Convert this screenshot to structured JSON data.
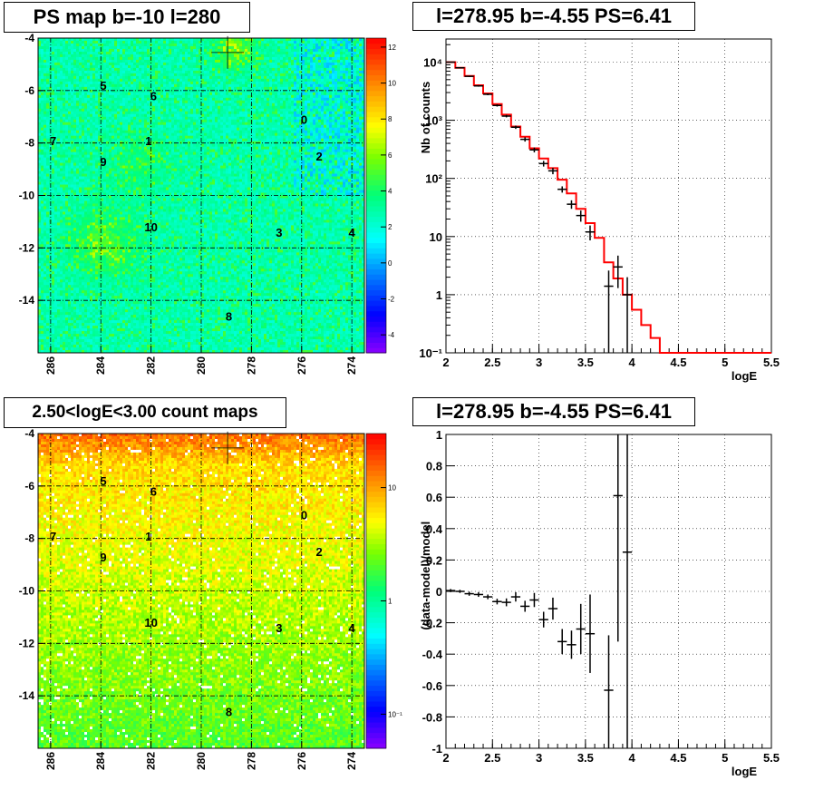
{
  "chart_data": [
    {
      "type": "heatmap",
      "title": "PS map b=-10 l=280",
      "x_ticks": [
        "286",
        "284",
        "282",
        "280",
        "278",
        "276",
        "274"
      ],
      "x_tick_values": [
        286,
        284,
        282,
        280,
        278,
        276,
        274
      ],
      "y_ticks": [
        "-4",
        "-6",
        "-8",
        "-10",
        "-12",
        "-14"
      ],
      "y_tick_values": [
        -4,
        -6,
        -8,
        -10,
        -12,
        -14
      ],
      "xlim": [
        286.5,
        273.5
      ],
      "ylim": [
        -16,
        -4
      ],
      "colorbar_ticks": [
        "12",
        "10",
        "8",
        "6",
        "4",
        "2",
        "0",
        "-2",
        "-4"
      ],
      "colorbar_values": [
        12,
        10,
        8,
        6,
        4,
        2,
        0,
        -2,
        -4
      ],
      "colorbar_range": [
        -5,
        12.5
      ],
      "marker": {
        "l": 278.95,
        "b": -4.55
      },
      "sources": [
        {
          "id": "0",
          "l": 275.9,
          "b": -7.1
        },
        {
          "id": "1",
          "l": 282.1,
          "b": -7.9
        },
        {
          "id": "2",
          "l": 275.3,
          "b": -8.5
        },
        {
          "id": "3",
          "l": 276.9,
          "b": -11.4
        },
        {
          "id": "4",
          "l": 274.0,
          "b": -11.4
        },
        {
          "id": "5",
          "l": 283.9,
          "b": -5.8
        },
        {
          "id": "6",
          "l": 281.9,
          "b": -6.2
        },
        {
          "id": "7",
          "l": 285.9,
          "b": -7.9
        },
        {
          "id": "8",
          "l": 278.9,
          "b": -14.6
        },
        {
          "id": "9",
          "l": 283.9,
          "b": -8.7
        },
        {
          "id": "10",
          "l": 282.0,
          "b": -11.2
        }
      ]
    },
    {
      "type": "line",
      "title": "l=278.95 b=-4.55 PS=6.41",
      "xlabel": "logE",
      "ylabel": "Nb of counts",
      "xlim": [
        2,
        5.5
      ],
      "ylim": [
        0.1,
        25000
      ],
      "yscale": "log",
      "grid": true,
      "x_ticks": [
        "2",
        "2.5",
        "3",
        "3.5",
        "4",
        "4.5",
        "5",
        "5.5"
      ],
      "x_tick_values": [
        2,
        2.5,
        3,
        3.5,
        4,
        4.5,
        5,
        5.5
      ],
      "y_ticks": [
        "10⁴",
        "10³",
        "10²",
        "10",
        "1",
        "10⁻¹"
      ],
      "y_tick_values": [
        10000,
        1000,
        100,
        10,
        1,
        0.1
      ],
      "model_edges": [
        2.0,
        2.1,
        2.2,
        2.3,
        2.4,
        2.5,
        2.6,
        2.7,
        2.8,
        2.9,
        3.0,
        3.1,
        3.2,
        3.3,
        3.4,
        3.5,
        3.6,
        3.7,
        3.8,
        3.9,
        4.0,
        4.1,
        4.2,
        4.3,
        4.4,
        4.5,
        4.6,
        4.7,
        4.8,
        4.9,
        5.0,
        5.1,
        5.2,
        5.3,
        5.4,
        5.5
      ],
      "model_values": [
        10000,
        8000,
        5800,
        4000,
        2900,
        1900,
        1250,
        780,
        520,
        330,
        220,
        150,
        95,
        55,
        30,
        17,
        9.5,
        3.6,
        1.9,
        1.0,
        0.55,
        0.3,
        0.18,
        0.1,
        0.1,
        0.1,
        0.1,
        0.1,
        0.1,
        0.1,
        0.1,
        0.1,
        0.1,
        0.1,
        0.1
      ],
      "data_points": [
        {
          "x": 2.05,
          "y": 10000,
          "lo": 9800,
          "hi": 10200
        },
        {
          "x": 2.15,
          "y": 8000,
          "lo": 7830,
          "hi": 8180
        },
        {
          "x": 2.25,
          "y": 5700,
          "lo": 5550,
          "hi": 5850
        },
        {
          "x": 2.35,
          "y": 3900,
          "lo": 3780,
          "hi": 4030
        },
        {
          "x": 2.45,
          "y": 2800,
          "lo": 2700,
          "hi": 2900
        },
        {
          "x": 2.55,
          "y": 1800,
          "lo": 1720,
          "hi": 1880
        },
        {
          "x": 2.65,
          "y": 1180,
          "lo": 1120,
          "hi": 1240
        },
        {
          "x": 2.75,
          "y": 760,
          "lo": 710,
          "hi": 810
        },
        {
          "x": 2.85,
          "y": 470,
          "lo": 430,
          "hi": 510
        },
        {
          "x": 2.95,
          "y": 310,
          "lo": 280,
          "hi": 340
        },
        {
          "x": 3.05,
          "y": 180,
          "lo": 160,
          "hi": 200
        },
        {
          "x": 3.15,
          "y": 135,
          "lo": 118,
          "hi": 152
        },
        {
          "x": 3.25,
          "y": 65,
          "lo": 57,
          "hi": 73
        },
        {
          "x": 3.35,
          "y": 36,
          "lo": 30,
          "hi": 42
        },
        {
          "x": 3.45,
          "y": 23,
          "lo": 18,
          "hi": 28
        },
        {
          "x": 3.55,
          "y": 12,
          "lo": 8.6,
          "hi": 15.5
        },
        {
          "x": 3.75,
          "y": 1.4,
          "lo": 0.1,
          "hi": 2.6
        },
        {
          "x": 3.85,
          "y": 3.0,
          "lo": 1.3,
          "hi": 4.7
        },
        {
          "x": 3.95,
          "y": 1.0,
          "lo": 0.1,
          "hi": 2.0
        }
      ]
    },
    {
      "type": "heatmap",
      "title": "2.50<logE<3.00 count maps",
      "x_ticks": [
        "286",
        "284",
        "282",
        "280",
        "278",
        "276",
        "274"
      ],
      "x_tick_values": [
        286,
        284,
        282,
        280,
        278,
        276,
        274
      ],
      "y_ticks": [
        "-4",
        "-6",
        "-8",
        "-10",
        "-12",
        "-14"
      ],
      "y_tick_values": [
        -4,
        -6,
        -8,
        -10,
        -12,
        -14
      ],
      "xlim": [
        286.5,
        273.5
      ],
      "ylim": [
        -16,
        -4
      ],
      "colorbar_ticks": [
        "10",
        "1",
        "10⁻¹"
      ],
      "colorbar_values": [
        10,
        1,
        0.1
      ],
      "colorscale": "log",
      "colorbar_range": [
        0.05,
        30
      ],
      "marker": {
        "l": 278.95,
        "b": -4.55
      }
    },
    {
      "type": "scatter",
      "title": "l=278.95 b=-4.55 PS=6.41",
      "xlabel": "logE",
      "ylabel": "(data-model)/model",
      "xlim": [
        2,
        5.5
      ],
      "ylim": [
        -1,
        1
      ],
      "grid": true,
      "x_ticks": [
        "2",
        "2.5",
        "3",
        "3.5",
        "4",
        "4.5",
        "5",
        "5.5"
      ],
      "x_tick_values": [
        2,
        2.5,
        3,
        3.5,
        4,
        4.5,
        5,
        5.5
      ],
      "y_ticks": [
        "1",
        "0.8",
        "0.6",
        "0.4",
        "0.2",
        "0",
        "-0.2",
        "-0.4",
        "-0.6",
        "-0.8",
        "-1"
      ],
      "y_tick_values": [
        1,
        0.8,
        0.6,
        0.4,
        0.2,
        0,
        -0.2,
        -0.4,
        -0.6,
        -0.8,
        -1
      ],
      "data_points": [
        {
          "x": 2.05,
          "y": 0.005,
          "lo": -0.005,
          "hi": 0.015
        },
        {
          "x": 2.15,
          "y": 0.0,
          "lo": -0.01,
          "hi": 0.01
        },
        {
          "x": 2.25,
          "y": -0.015,
          "lo": -0.028,
          "hi": -0.002
        },
        {
          "x": 2.35,
          "y": -0.02,
          "lo": -0.035,
          "hi": -0.005
        },
        {
          "x": 2.45,
          "y": -0.035,
          "lo": -0.05,
          "hi": -0.02
        },
        {
          "x": 2.55,
          "y": -0.065,
          "lo": -0.083,
          "hi": -0.047
        },
        {
          "x": 2.65,
          "y": -0.07,
          "lo": -0.095,
          "hi": -0.045
        },
        {
          "x": 2.75,
          "y": -0.035,
          "lo": -0.065,
          "hi": -0.005
        },
        {
          "x": 2.85,
          "y": -0.095,
          "lo": -0.13,
          "hi": -0.06
        },
        {
          "x": 2.95,
          "y": -0.055,
          "lo": -0.1,
          "hi": -0.01
        },
        {
          "x": 3.05,
          "y": -0.18,
          "lo": -0.23,
          "hi": -0.13
        },
        {
          "x": 3.15,
          "y": -0.11,
          "lo": -0.18,
          "hi": -0.04
        },
        {
          "x": 3.25,
          "y": -0.32,
          "lo": -0.4,
          "hi": -0.24
        },
        {
          "x": 3.35,
          "y": -0.34,
          "lo": -0.43,
          "hi": -0.25
        },
        {
          "x": 3.45,
          "y": -0.24,
          "lo": -0.4,
          "hi": -0.08
        },
        {
          "x": 3.55,
          "y": -0.27,
          "lo": -0.52,
          "hi": -0.02
        },
        {
          "x": 3.75,
          "y": -0.63,
          "lo": -1.0,
          "hi": -0.28
        },
        {
          "x": 3.85,
          "y": 0.61,
          "lo": -0.32,
          "hi": 1.0
        },
        {
          "x": 3.95,
          "y": 0.25,
          "lo": -1.0,
          "hi": 1.0
        }
      ]
    }
  ]
}
